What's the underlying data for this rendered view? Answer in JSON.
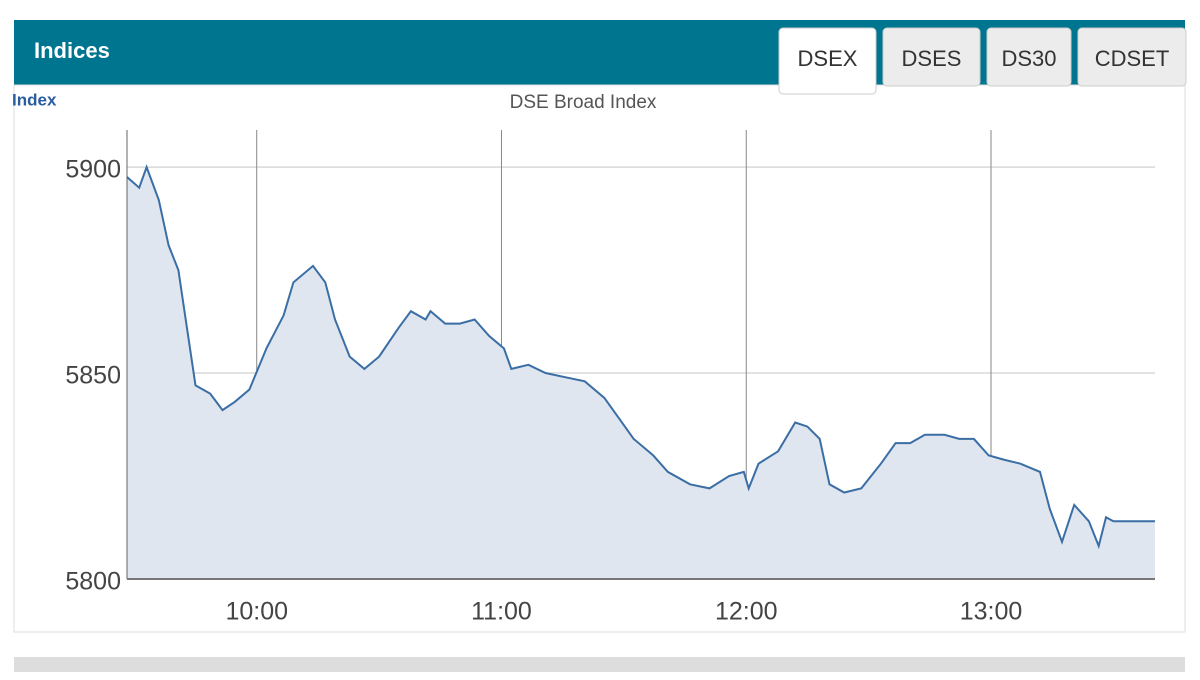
{
  "header": {
    "title": "Indices"
  },
  "tabs": [
    "DSEX",
    "DSES",
    "DS30",
    "CDSET"
  ],
  "active_tab": 0,
  "chart_data": {
    "type": "area",
    "title": "DSE Broad Index",
    "y_label": "Index",
    "color": "#3a6ea5",
    "fill": "#dfe6ef",
    "grid": true,
    "x": [
      9.47,
      9.52,
      9.55,
      9.6,
      9.64,
      9.68,
      9.71,
      9.75,
      9.81,
      9.86,
      9.91,
      9.97,
      10.04,
      10.11,
      10.15,
      10.23,
      10.28,
      10.32,
      10.38,
      10.44,
      10.5,
      10.58,
      10.63,
      10.69,
      10.71,
      10.77,
      10.83,
      10.89,
      10.95,
      11.01,
      11.04,
      11.11,
      11.18,
      11.26,
      11.34,
      11.42,
      11.48,
      11.54,
      11.62,
      11.68,
      11.77,
      11.85,
      11.93,
      11.99,
      12.01,
      12.05,
      12.13,
      12.2,
      12.25,
      12.3,
      12.34,
      12.4,
      12.47,
      12.51,
      12.55,
      12.61,
      12.67,
      12.73,
      12.81,
      12.87,
      12.93,
      12.99,
      13.05,
      13.12,
      13.2,
      13.24,
      13.29,
      13.34,
      13.4,
      13.44,
      13.47,
      13.5,
      13.67
    ],
    "values": [
      5897.6,
      5895,
      5900,
      5892,
      5881,
      5875,
      5863,
      5847,
      5845,
      5841,
      5843,
      5846,
      5856,
      5864,
      5872,
      5876,
      5872,
      5863,
      5854,
      5851,
      5854,
      5861,
      5865,
      5863,
      5865,
      5862,
      5862,
      5863,
      5859,
      5856,
      5851,
      5852,
      5850,
      5849,
      5848,
      5844,
      5839,
      5834,
      5830,
      5826,
      5823,
      5822,
      5825,
      5826,
      5822,
      5828,
      5831,
      5838,
      5837,
      5834,
      5823,
      5821,
      5822,
      5825,
      5828,
      5833,
      5833,
      5835,
      5835,
      5834,
      5834,
      5830,
      5829,
      5828,
      5826,
      5817,
      5809,
      5818,
      5814,
      5808,
      5815,
      5814,
      5814
    ],
    "xlim": [
      9.47,
      13.67
    ],
    "xticks": [
      {
        "value": 10,
        "label": "10:00"
      },
      {
        "value": 11,
        "label": "11:00"
      },
      {
        "value": 12,
        "label": "12:00"
      },
      {
        "value": 13,
        "label": "13:00"
      }
    ],
    "ylim": [
      5800,
      5909
    ],
    "yticks": [
      5800,
      5850,
      5900
    ]
  }
}
